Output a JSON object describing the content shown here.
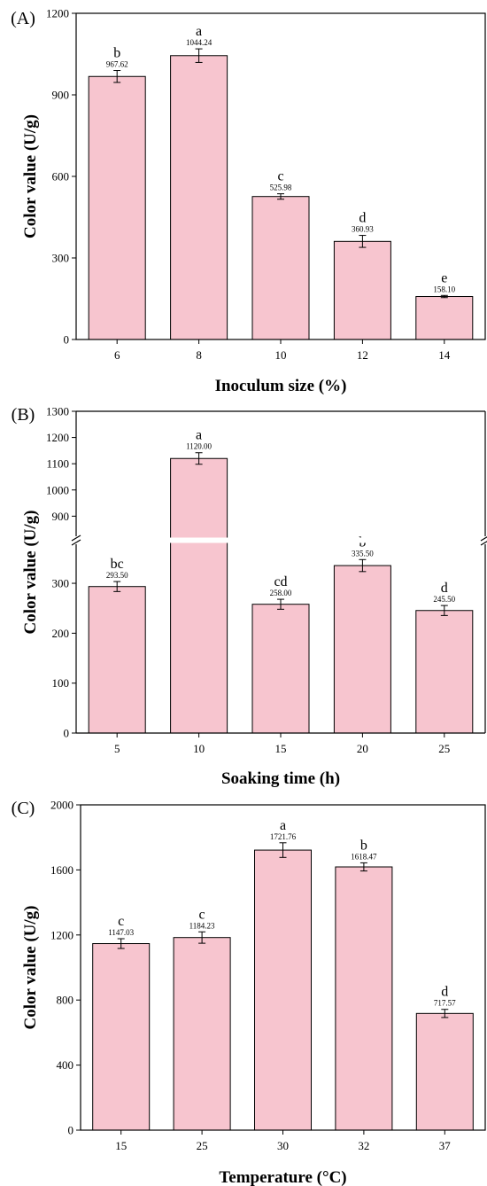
{
  "chart_data": [
    {
      "type": "bar",
      "panel_label": "(A)",
      "xlabel": "Inoculum size (%)",
      "ylabel": "Color value (U/g)",
      "categories": [
        "6",
        "8",
        "10",
        "12",
        "14"
      ],
      "values": [
        967.62,
        1044.24,
        525.98,
        360.93,
        158.1
      ],
      "value_labels": [
        "967.62",
        "1044.24",
        "525.98",
        "360.93",
        "158.10"
      ],
      "errors": [
        22,
        25,
        10,
        22,
        4
      ],
      "letters": [
        "b",
        "a",
        "c",
        "d",
        "e"
      ],
      "ylim": [
        0,
        1200
      ],
      "yticks": [
        0,
        300,
        600,
        900,
        1200
      ],
      "bar_color": "#f7c5cf",
      "grid": false
    },
    {
      "type": "bar",
      "panel_label": "(B)",
      "xlabel": "Soaking time (h)",
      "ylabel": "Color value (U/g)",
      "categories": [
        "5",
        "10",
        "15",
        "20",
        "25"
      ],
      "values": [
        293.5,
        1120.0,
        258.0,
        335.5,
        245.5
      ],
      "value_labels": [
        "293.50",
        "1120.00",
        "258.00",
        "335.50",
        "245.50"
      ],
      "errors": [
        10,
        22,
        10,
        12,
        10
      ],
      "letters": [
        "bc",
        "a",
        "cd",
        "b",
        "d"
      ],
      "axis_break": {
        "lower": [
          0,
          380
        ],
        "upper": [
          820,
          1300
        ]
      },
      "yticks": [
        0,
        100,
        200,
        300,
        900,
        1000,
        1100,
        1200,
        1300
      ],
      "bar_color": "#f7c5cf",
      "grid": false
    },
    {
      "type": "bar",
      "panel_label": "(C)",
      "xlabel": "Temperature (°C)",
      "ylabel": "Color value (U/g)",
      "categories": [
        "15",
        "25",
        "30",
        "32",
        "37"
      ],
      "values": [
        1147.03,
        1184.23,
        1721.76,
        1618.47,
        717.57
      ],
      "value_labels": [
        "1147.03",
        "1184.23",
        "1721.76",
        "1618.47",
        "717.57"
      ],
      "errors": [
        30,
        35,
        45,
        25,
        25
      ],
      "letters": [
        "c",
        "c",
        "a",
        "b",
        "d"
      ],
      "ylim": [
        0,
        2000
      ],
      "yticks": [
        0,
        400,
        800,
        1200,
        1600,
        2000
      ],
      "bar_color": "#f7c5cf",
      "grid": false
    }
  ]
}
